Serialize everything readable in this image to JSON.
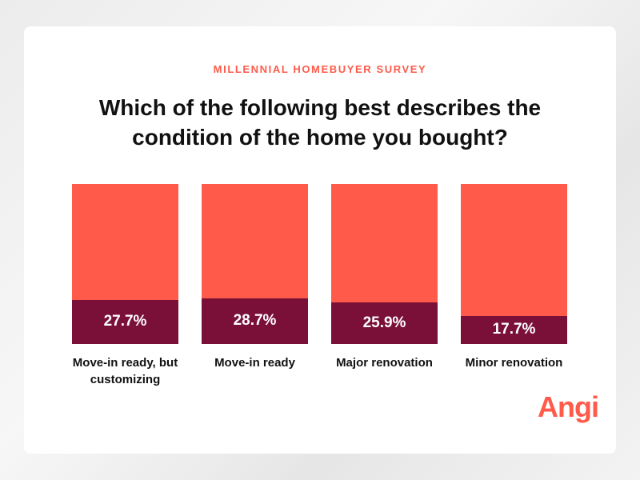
{
  "chart_data": {
    "type": "bar",
    "subtitle": "MILLENNIAL HOMEBUYER SURVEY",
    "title": "Which of the following best describes the condition of the home you bought?",
    "categories": [
      "Move-in ready, but customizing",
      "Move-in ready",
      "Major renovation",
      "Minor renovation"
    ],
    "values": [
      27.7,
      28.7,
      25.9,
      17.7
    ],
    "value_labels": [
      "27.7%",
      "28.7%",
      "25.9%",
      "17.7%"
    ],
    "color": "#7a1038",
    "ylim": [
      0,
      100
    ],
    "logo": "Angi"
  }
}
